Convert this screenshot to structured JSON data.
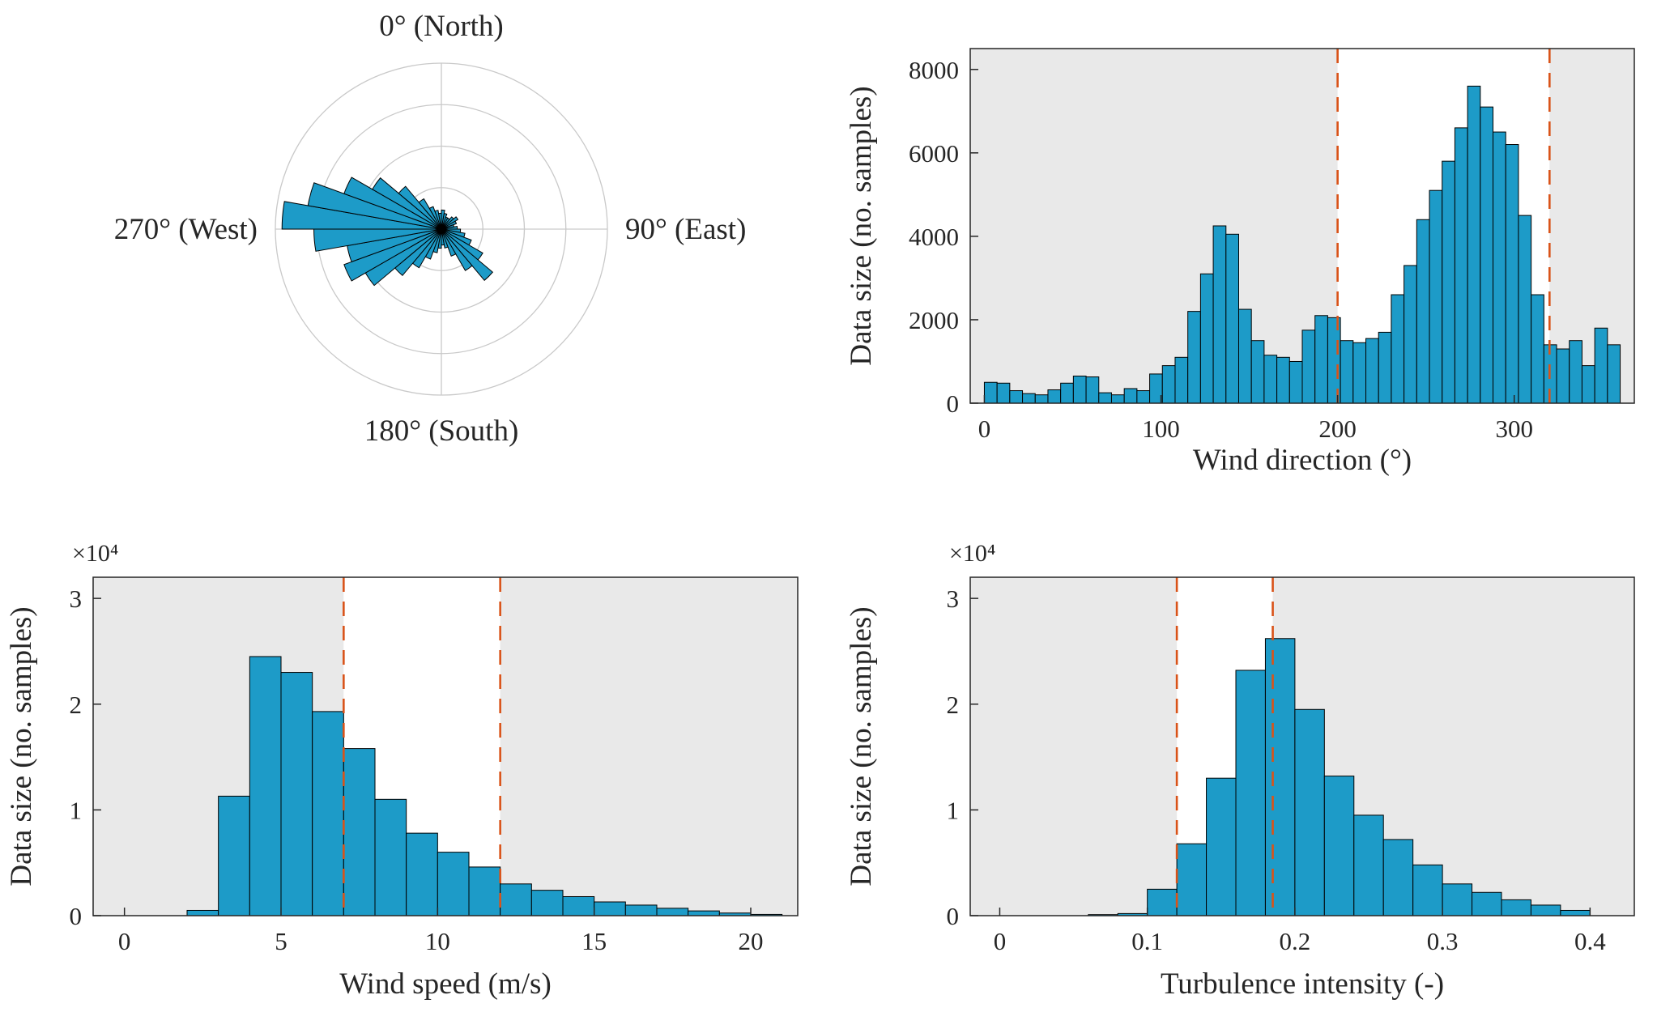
{
  "figure": {
    "bg": "#ffffff",
    "bar_fill": "#1d9bc8",
    "bar_edge": "#000000",
    "threshold_color": "#d95319",
    "shade_color": "#e9e9e9",
    "axis_color": "#262626",
    "grid_color": "#c9c9c9"
  },
  "chart_data": [
    {
      "id": "wind-rose",
      "type": "polar-histogram",
      "angle_labels": {
        "north": "0° (North)",
        "east": "90° (East)",
        "south": "180° (South)",
        "west": "270° (West)"
      },
      "start_deg": 0,
      "bin_width_deg": 10,
      "values_norm": [
        0.12,
        0.1,
        0.08,
        0.08,
        0.1,
        0.12,
        0.1,
        0.08,
        0.1,
        0.12,
        0.15,
        0.2,
        0.3,
        0.42,
        0.3,
        0.18,
        0.12,
        0.1,
        0.12,
        0.15,
        0.2,
        0.28,
        0.38,
        0.55,
        0.65,
        0.6,
        0.8,
        1.0,
        0.85,
        0.65,
        0.5,
        0.35,
        0.22,
        0.15,
        0.12,
        0.1
      ]
    },
    {
      "id": "wind-direction",
      "type": "bar",
      "xlabel": "Wind direction (°)",
      "ylabel": "Data size (no. samples)",
      "bin_start": 0,
      "bin_width": 7.2,
      "values": [
        500,
        480,
        300,
        230,
        200,
        320,
        480,
        650,
        630,
        250,
        200,
        350,
        300,
        700,
        900,
        1100,
        2200,
        3100,
        4250,
        4050,
        2250,
        1500,
        1150,
        1100,
        1000,
        1750,
        2100,
        2050,
        1500,
        1450,
        1550,
        1700,
        2600,
        3300,
        4400,
        5100,
        5800,
        6600,
        7600,
        7100,
        6500,
        6200,
        4500,
        2600,
        1400,
        1300,
        1500,
        900,
        1800,
        1400
      ],
      "xlim": [
        -8,
        368
      ],
      "ylim": [
        0,
        8500
      ],
      "xticks": [
        0,
        100,
        200,
        300
      ],
      "yticks": [
        0,
        2000,
        4000,
        6000,
        8000
      ],
      "dashed_lines_x": [
        200,
        320
      ],
      "shaded_outside_x": [
        200,
        320
      ]
    },
    {
      "id": "wind-speed",
      "type": "bar",
      "xlabel": "Wind speed (m/s)",
      "ylabel": "Data size (no. samples)",
      "y_exponent": "×10⁴",
      "bin_start": 2,
      "bin_width": 1,
      "values": [
        500,
        11300,
        24500,
        23000,
        19300,
        15800,
        11000,
        7800,
        6000,
        4600,
        3000,
        2400,
        1800,
        1300,
        1000,
        700,
        450,
        250,
        120
      ],
      "xlim": [
        -1,
        21.5
      ],
      "ylim": [
        0,
        32000
      ],
      "xticks": [
        0,
        5,
        10,
        15,
        20
      ],
      "yticks": [
        0,
        10000,
        20000,
        30000
      ],
      "ytick_labels": [
        "0",
        "1",
        "2",
        "3"
      ],
      "dashed_lines_x": [
        7,
        12
      ],
      "shaded_outside_x": [
        7,
        12
      ]
    },
    {
      "id": "turbulence-intensity",
      "type": "bar",
      "xlabel": "Turbulence intensity (-)",
      "ylabel": "Data size (no. samples)",
      "y_exponent": "×10⁴",
      "bin_start": 0.06,
      "bin_width": 0.02,
      "values": [
        100,
        200,
        2500,
        6800,
        13000,
        23200,
        26200,
        19500,
        13200,
        9500,
        7200,
        4800,
        3000,
        2200,
        1500,
        1000,
        500
      ],
      "xlim": [
        -0.02,
        0.43
      ],
      "ylim": [
        0,
        32000
      ],
      "xticks": [
        0,
        0.1,
        0.2,
        0.3,
        0.4
      ],
      "xtick_labels": [
        "0",
        "0.1",
        "0.2",
        "0.3",
        "0.4"
      ],
      "yticks": [
        0,
        10000,
        20000,
        30000
      ],
      "ytick_labels": [
        "0",
        "1",
        "2",
        "3"
      ],
      "dashed_lines_x": [
        0.12,
        0.185
      ],
      "shaded_outside_x": [
        0.12,
        0.185
      ]
    }
  ]
}
